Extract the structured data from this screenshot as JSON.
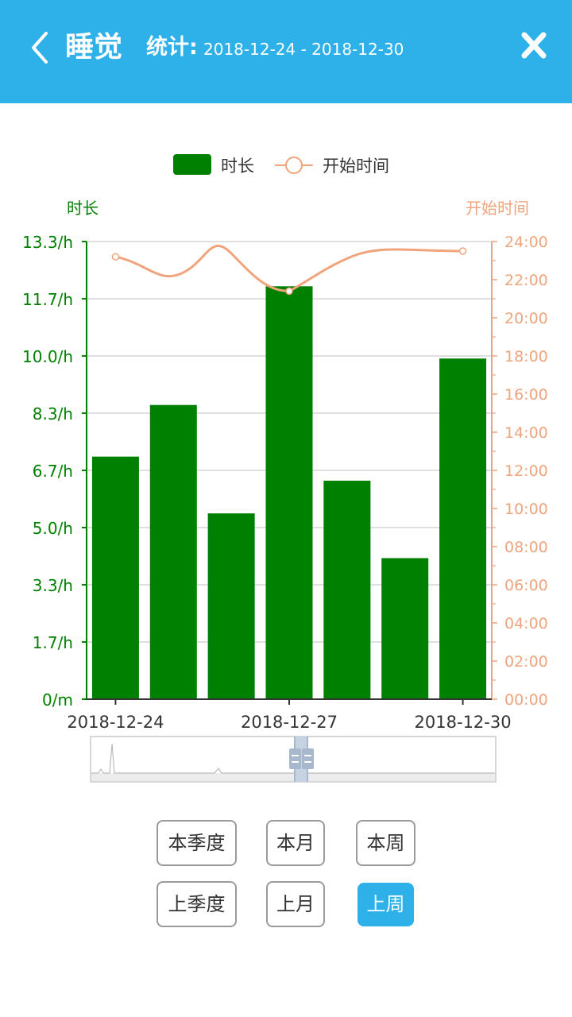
{
  "header": {
    "title": "睡觉",
    "stat_label": "统计:",
    "range": "2018-12-24 - 2018-12-30"
  },
  "colors": {
    "header_bg": "#2eb0e9",
    "bar": "#008000",
    "line": "#f0a47c",
    "button_active": "#2eb0e9"
  },
  "chart_data": {
    "type": "bar",
    "legend": [
      "时长",
      "开始时间"
    ],
    "legend_position": "top-center",
    "y_left_label": "时长",
    "y_right_label": "开始时间",
    "y_left_ticks": [
      "0/m",
      "1.7/h",
      "3.3/h",
      "5.0/h",
      "6.7/h",
      "8.3/h",
      "10.0/h",
      "11.7/h",
      "13.3/h"
    ],
    "y_right_ticks": [
      "00:00",
      "02:00",
      "04:00",
      "06:00",
      "08:00",
      "10:00",
      "12:00",
      "14:00",
      "16:00",
      "18:00",
      "20:00",
      "22:00",
      "24:00"
    ],
    "x_tick_labels": [
      "2018-12-24",
      "2018-12-27",
      "2018-12-30"
    ],
    "ylim_left": [
      0,
      13.3
    ],
    "ylim_right": [
      0,
      24
    ],
    "grid": true,
    "categories": [
      "2018-12-24",
      "2018-12-25",
      "2018-12-26",
      "2018-12-27",
      "2018-12-28",
      "2018-12-29",
      "2018-12-30"
    ],
    "series": [
      {
        "name": "时长",
        "type": "bar",
        "axis": "left",
        "values": [
          7.05,
          8.55,
          5.4,
          12.0,
          6.35,
          4.1,
          9.9
        ]
      },
      {
        "name": "开始时间",
        "type": "line",
        "axis": "right",
        "values": [
          23.2,
          null,
          null,
          21.4,
          null,
          null,
          23.5
        ]
      }
    ]
  },
  "buttons": [
    {
      "id": "this-quarter",
      "label": "本季度",
      "active": false
    },
    {
      "id": "this-month",
      "label": "本月",
      "active": false
    },
    {
      "id": "this-week",
      "label": "本周",
      "active": false
    },
    {
      "id": "last-quarter",
      "label": "上季度",
      "active": false
    },
    {
      "id": "last-month",
      "label": "上月",
      "active": false
    },
    {
      "id": "last-week",
      "label": "上周",
      "active": true
    }
  ]
}
